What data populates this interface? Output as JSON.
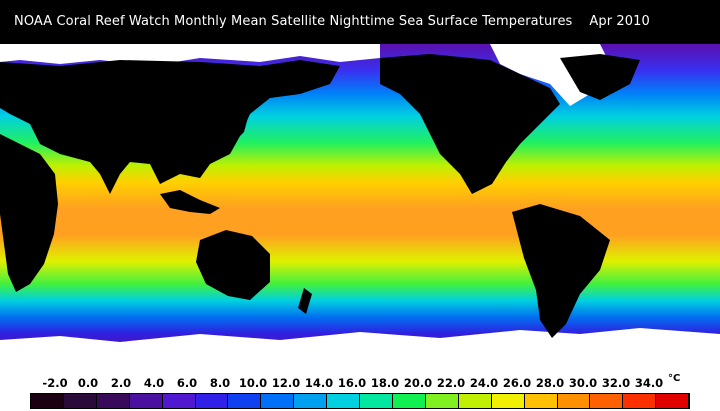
{
  "header": {
    "title": "NOAA Coral Reef Watch Monthly Mean Satellite Nighttime Sea Surface Temperatures",
    "date": "Apr 2010"
  },
  "legend": {
    "unit": "°C",
    "tick_labels": [
      "-2.0",
      "0.0",
      "2.0",
      "4.0",
      "6.0",
      "8.0",
      "10.0",
      "12.0",
      "14.0",
      "16.0",
      "18.0",
      "20.0",
      "22.0",
      "24.0",
      "26.0",
      "28.0",
      "30.0",
      "32.0",
      "34.0"
    ],
    "swatch_colors": [
      "#1a0010",
      "#2a0a3a",
      "#3a0a5a",
      "#4a10a0",
      "#5018d0",
      "#3020e8",
      "#1040f0",
      "#0070f8",
      "#00a0f0",
      "#00d0e0",
      "#00e8a0",
      "#10f050",
      "#80f020",
      "#c0f000",
      "#f0f000",
      "#ffc000",
      "#ff9000",
      "#ff6000",
      "#ff3000",
      "#e00000"
    ]
  },
  "map": {
    "colors": {
      "land": "#000000",
      "ice": "#ffffff"
    }
  }
}
